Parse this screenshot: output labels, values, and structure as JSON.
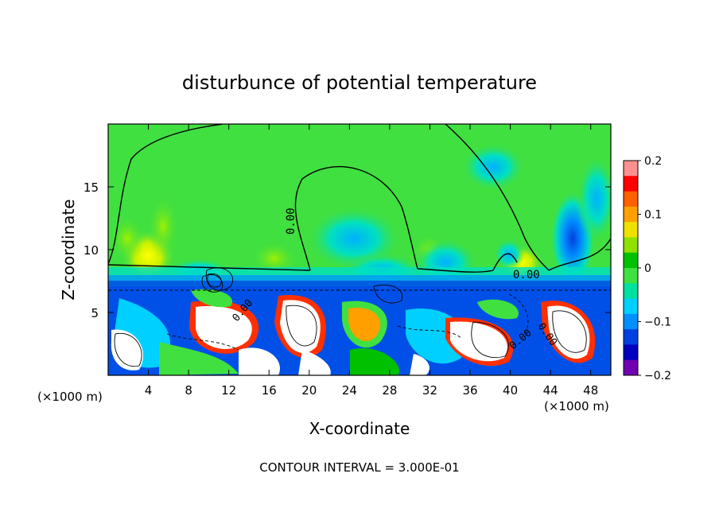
{
  "chart_data": {
    "type": "heatmap",
    "title": "disturbunce of potential temperature",
    "xlabel": "X-coordinate",
    "ylabel": "Z-coordinate",
    "x_unit_left": "(×1000 m)",
    "x_unit_right": "(×1000 m)",
    "xlim": [
      0,
      50
    ],
    "ylim": [
      0,
      20
    ],
    "x_ticks": [
      4,
      8,
      12,
      16,
      20,
      24,
      28,
      32,
      36,
      40,
      44,
      48
    ],
    "x_tick_labels": [
      "4",
      "8",
      "12",
      "16",
      "20",
      "24",
      "28",
      "32",
      "36",
      "40",
      "44",
      "48"
    ],
    "y_ticks": [
      5,
      10,
      15
    ],
    "y_tick_labels": [
      "5",
      "10",
      "15"
    ],
    "colorbar": {
      "range": [
        -0.2,
        0.2
      ],
      "ticks": [
        0.2,
        0.1,
        0,
        -0.1,
        -0.2
      ],
      "tick_labels": [
        "0.2",
        "0.1",
        "0",
        "−0.1",
        "−0.2"
      ],
      "colors": [
        "#ff9090",
        "#ff0000",
        "#ff6000",
        "#ffa000",
        "#f0e000",
        "#90e000",
        "#00c000",
        "#40e040",
        "#00e0a0",
        "#00d0ff",
        "#0090ff",
        "#0040e0",
        "#0000c0",
        "#7000b0"
      ]
    },
    "contour_labels": [
      "0.00",
      "0.00",
      "0.00",
      "0.00",
      "0.00"
    ],
    "contour_interval": "CONTOUR INTERVAL = 3.000E-01"
  }
}
